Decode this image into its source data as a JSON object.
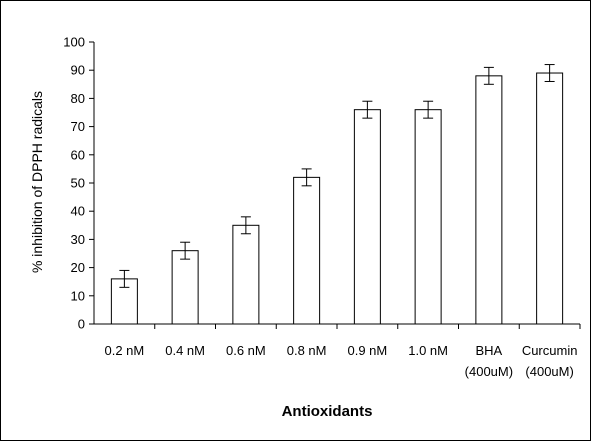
{
  "chart_data": {
    "type": "bar",
    "categories": [
      [
        "0.2 nM"
      ],
      [
        "0.4 nM"
      ],
      [
        "0.6 nM"
      ],
      [
        "0.8 nM"
      ],
      [
        "0.9 nM"
      ],
      [
        "1.0 nM"
      ],
      [
        "BHA",
        "(400uM)"
      ],
      [
        "Curcumin",
        "(400uM)"
      ]
    ],
    "values": [
      16,
      26,
      35,
      52,
      76,
      76,
      88,
      89
    ],
    "errors": [
      3,
      3,
      3,
      3,
      3,
      3,
      3,
      3
    ],
    "title": "",
    "xlabel": "Antioxidants",
    "ylabel": "% inhibition of DPPH radicals",
    "ylim": [
      0,
      100
    ],
    "yticks": [
      0,
      10,
      20,
      30,
      40,
      50,
      60,
      70,
      80,
      90,
      100
    ],
    "grid": false,
    "legend": "none",
    "colors": {
      "bar_fill": "#ffffff",
      "bar_stroke": "#000000",
      "axis": "#000000"
    }
  }
}
